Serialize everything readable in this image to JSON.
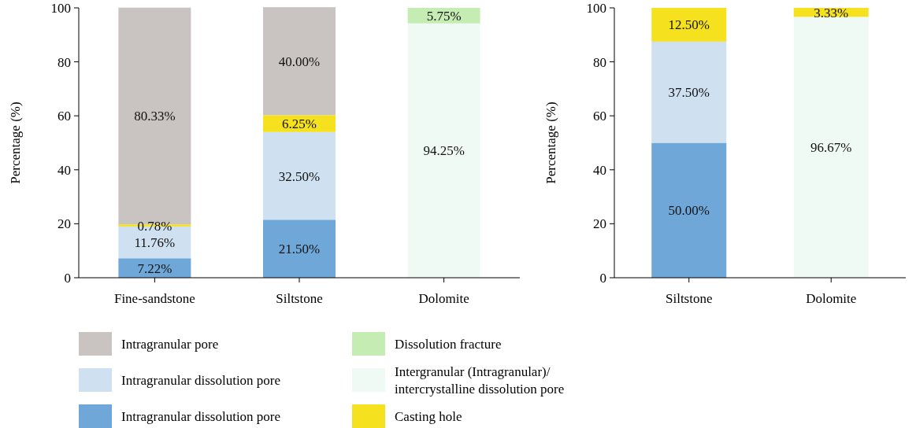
{
  "chart_data": [
    {
      "type": "bar",
      "stacked": true,
      "categories": [
        "Fine-sandstone",
        "Siltstone",
        "Dolomite"
      ],
      "ylabel": "Percentage (%)",
      "ylim": [
        0,
        100
      ],
      "yticks": [
        0,
        20,
        40,
        60,
        80,
        100
      ],
      "legend": "bottom",
      "series": [
        {
          "name": "Intragranular dissolution pore",
          "color": "#6fa8d8",
          "values": [
            7.22,
            21.5,
            null
          ],
          "value_labels": [
            "7.22%",
            "21.50%",
            null
          ]
        },
        {
          "name": "Intragranular dissolution pore",
          "color": "#cfe0f1",
          "values": [
            11.76,
            32.5,
            null
          ],
          "value_labels": [
            "11.76%",
            "32.50%",
            null
          ]
        },
        {
          "name": "Intergranular (Intragranular)/ intercrystalline dissolution pore",
          "color": "#effaf5",
          "values": [
            null,
            null,
            94.25
          ],
          "value_labels": [
            null,
            null,
            "94.25%"
          ]
        },
        {
          "name": "Casting hole",
          "color": "#f5e11e",
          "values": [
            0.78,
            6.25,
            null
          ],
          "value_labels": [
            "0.78%",
            "6.25%",
            null
          ]
        },
        {
          "name": "Dissolution fracture",
          "color": "#c5edb3",
          "values": [
            null,
            null,
            5.75
          ],
          "value_labels": [
            null,
            null,
            "5.75%"
          ]
        },
        {
          "name": "Intragranular pore",
          "color": "#c9c4c2",
          "values": [
            80.33,
            40.0,
            null
          ],
          "value_labels": [
            "80.33%",
            "40.00%",
            null
          ]
        }
      ]
    },
    {
      "type": "bar",
      "stacked": true,
      "categories": [
        "Siltstone",
        "Dolomite"
      ],
      "ylabel": "Percentage (%)",
      "ylim": [
        0,
        100
      ],
      "yticks": [
        0,
        20,
        40,
        60,
        80,
        100
      ],
      "series": [
        {
          "color": "#6fa8d8",
          "values": [
            50.0,
            null
          ],
          "value_labels": [
            "50.00%",
            null
          ]
        },
        {
          "color": "#cfe0f1",
          "values": [
            37.5,
            null
          ],
          "value_labels": [
            "37.50%",
            null
          ]
        },
        {
          "color": "#effaf5",
          "values": [
            null,
            96.67
          ],
          "value_labels": [
            null,
            "96.67%"
          ]
        },
        {
          "color": "#f5e11e",
          "values": [
            12.5,
            3.33
          ],
          "value_labels": [
            "12.50%",
            "3.33%"
          ]
        }
      ]
    }
  ]
}
